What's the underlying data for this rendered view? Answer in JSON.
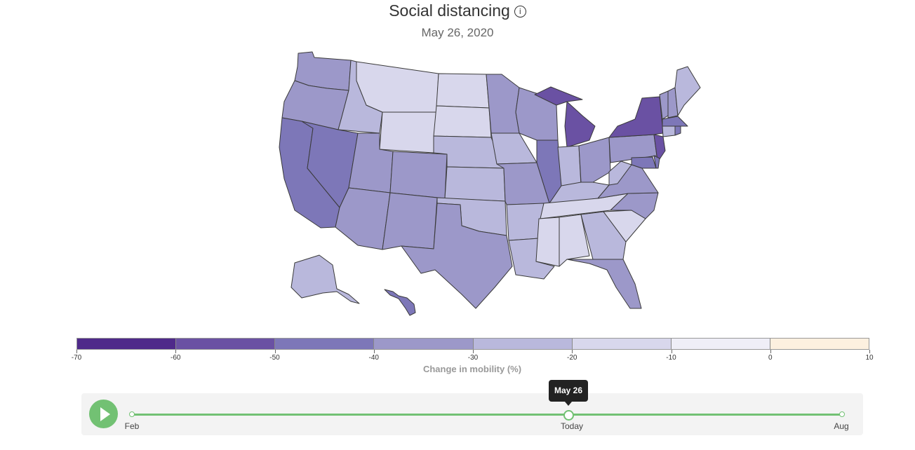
{
  "header": {
    "title": "Social distancing",
    "info_icon": "info-circle-icon",
    "date": "May 26, 2020"
  },
  "legend": {
    "title": "Change in mobility (%)",
    "ticks": [
      "-70",
      "-60",
      "-50",
      "-40",
      "-30",
      "-20",
      "-10",
      "0",
      "10"
    ],
    "colors": [
      "#4f2a8a",
      "#6a51a3",
      "#7d77b8",
      "#9c98c9",
      "#b9b8dc",
      "#d8d7ec",
      "#efeef7",
      "#fdf0df"
    ]
  },
  "map_colors": {
    "le_minus_50": "#6a51a3",
    "minus_50_to_40": "#7d77b8",
    "minus_40_to_30": "#9c98c9",
    "minus_30_to_20": "#b9b8dc",
    "minus_20_to_10": "#d8d7ec",
    "stroke": "#3a3a3a"
  },
  "timeline": {
    "play_icon": "play-icon",
    "start_label": "Feb",
    "current_label": "Today",
    "end_label": "Aug",
    "tooltip": "May 26",
    "accent_color": "#72c173"
  }
}
